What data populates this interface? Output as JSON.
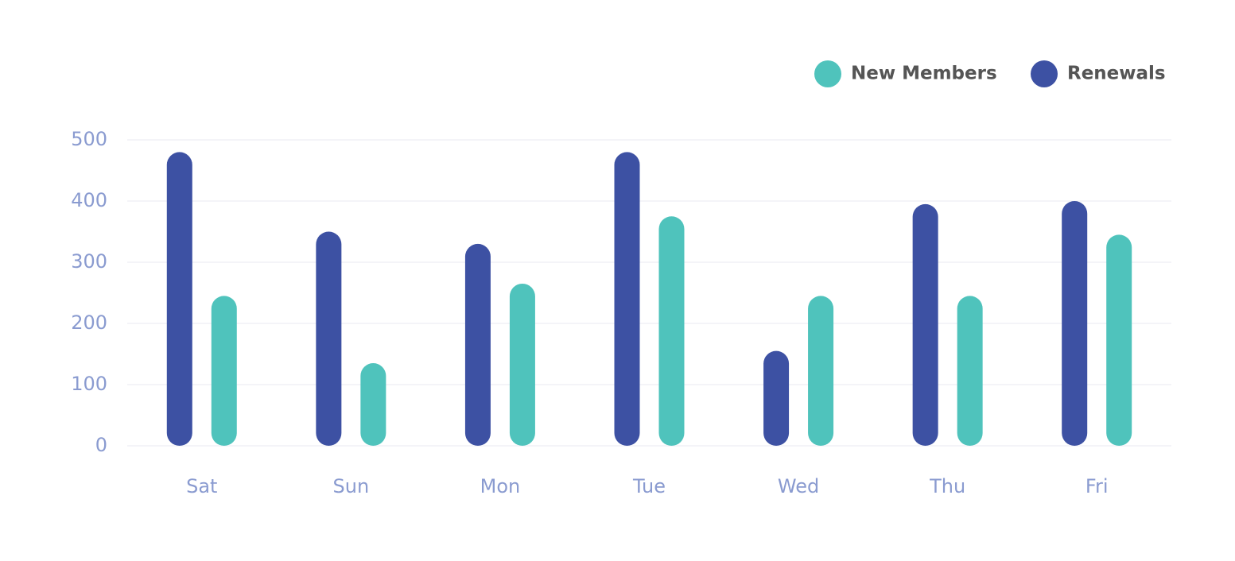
{
  "chart_data": {
    "type": "bar",
    "categories": [
      "Sat",
      "Sun",
      "Mon",
      "Tue",
      "Wed",
      "Thu",
      "Fri"
    ],
    "series": [
      {
        "name": "New Members",
        "color": "#4fc3bc",
        "values": [
          245,
          135,
          265,
          375,
          245,
          245,
          345
        ]
      },
      {
        "name": "Renewals",
        "color": "#3d51a3",
        "values": [
          480,
          350,
          330,
          480,
          155,
          395,
          400
        ]
      }
    ],
    "ylim": [
      0,
      500
    ],
    "yticks": [
      0,
      100,
      200,
      300,
      400,
      500
    ],
    "grid": true,
    "legend": "top-right"
  }
}
